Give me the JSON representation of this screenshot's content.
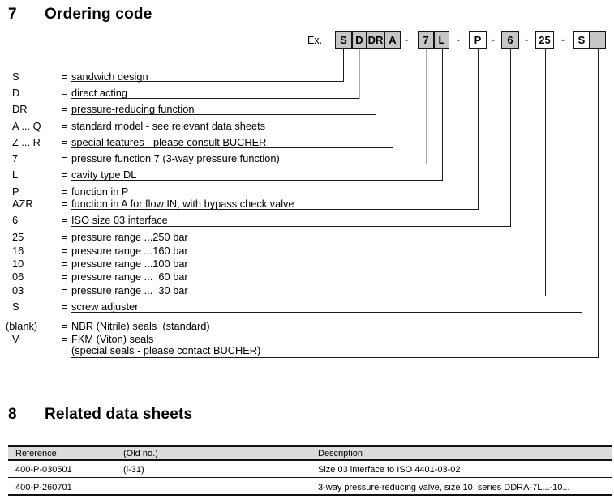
{
  "colors": {
    "box_fill": "#c6c6c6",
    "table_header_fill": "#dcdcdc",
    "line_color": "#1b1b1b",
    "muted_line_color": "#a8a8a8",
    "text_color": "#000000"
  },
  "ordering": {
    "section_number": "7",
    "section_title": "Ordering code",
    "example_label": "Ex.",
    "dash_char": "-",
    "eq_char": "=",
    "code_boxes": [
      {
        "label": "S",
        "shaded": true
      },
      {
        "label": "D",
        "shaded": true
      },
      {
        "label": "DR",
        "shaded": true
      },
      {
        "label": "A",
        "shaded": true
      },
      {
        "label": "7",
        "shaded": true
      },
      {
        "label": "L",
        "shaded": true
      },
      {
        "label": "P",
        "shaded": false
      },
      {
        "label": "6",
        "shaded": true
      },
      {
        "label": "25",
        "shaded": false
      },
      {
        "label": "S",
        "shaded": false
      },
      {
        "label": "_",
        "shaded": true,
        "muted_label": true
      }
    ],
    "codes": [
      {
        "code": "S",
        "desc": "sandwich design"
      },
      {
        "code": "D",
        "desc": "direct acting"
      },
      {
        "code": "DR",
        "desc": "pressure-reducing function"
      },
      {
        "code": "A ... Q",
        "desc": "standard model - see relevant data sheets"
      },
      {
        "code": "Z ... R",
        "desc": "special features - please consult BUCHER"
      },
      {
        "code": "7",
        "desc": "pressure function 7 (3-way pressure function)"
      },
      {
        "code": "L",
        "desc": "cavity type DL"
      },
      {
        "code": "P",
        "desc": "function in P"
      },
      {
        "code": "AZR",
        "desc": "function in A for flow IN, with bypass check valve"
      },
      {
        "code": "6",
        "desc": "ISO size 03 interface"
      },
      {
        "code": "25",
        "desc": "pressure range ...250 bar"
      },
      {
        "code": "16",
        "desc": "pressure range ...160 bar"
      },
      {
        "code": "10",
        "desc": "pressure range ...100 bar"
      },
      {
        "code": "06",
        "desc": "pressure range ...  60 bar"
      },
      {
        "code": "03",
        "desc": "pressure range ...  30 bar"
      },
      {
        "code": "S",
        "desc": "screw adjuster"
      },
      {
        "code": "(blank)",
        "desc": "NBR (Nitrile) seals  (standard)"
      },
      {
        "code": "V",
        "desc": "FKM (Viton) seals"
      },
      {
        "code": "",
        "desc": "(special seals - please contact BUCHER)",
        "no_eq": true
      }
    ]
  },
  "related": {
    "section_number": "8",
    "section_title": "Related data sheets",
    "table": {
      "headers": [
        "Reference",
        "(Old no.)",
        "Description"
      ],
      "rows": [
        [
          "400-P-030501",
          "(i-31)",
          "Size 03 interface to ISO 4401-03-02"
        ],
        [
          "400-P-260701",
          "",
          "3-way pressure-reducing valve, size 10, series DDRA-7L...-10..."
        ]
      ]
    }
  }
}
